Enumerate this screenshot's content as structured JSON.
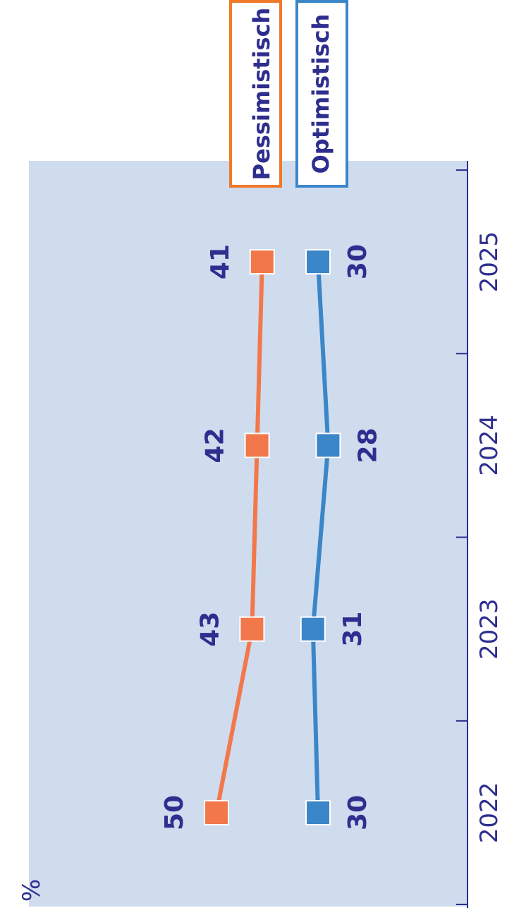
{
  "chart_data": {
    "type": "line",
    "unit_label": "%",
    "categories": [
      "2022",
      "2023",
      "2024",
      "2025"
    ],
    "series": [
      {
        "name": "Pessimistisch",
        "values": [
          50,
          43,
          42,
          41
        ]
      },
      {
        "name": "Optimistisch",
        "values": [
          30,
          31,
          28,
          30
        ]
      }
    ],
    "ylim": [
      0,
      100
    ],
    "colors": {
      "plot_background": "#cfdcee",
      "axis": "#2b2b8f",
      "label_text": "#2e2e8f",
      "Pessimistisch": "#f2784b",
      "Pessimistisch_legend_border": "#f07a2a",
      "Optimistisch": "#3a86c8",
      "Optimistisch_legend_border": "#3a86c8"
    },
    "orientation": "rotated-90-ccw",
    "legend_placement": "top-right"
  }
}
